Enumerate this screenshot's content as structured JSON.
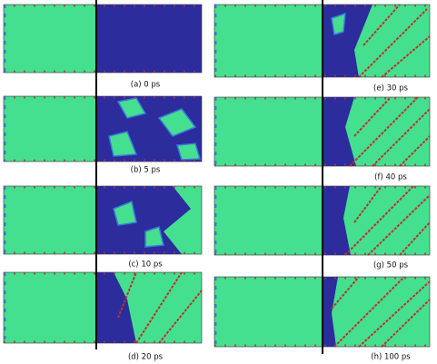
{
  "figure": {
    "panels": [
      {
        "caption": "(a) 0 ps"
      },
      {
        "caption": "(b) 5 ps"
      },
      {
        "caption": "(c) 10 ps"
      },
      {
        "caption": "(d) 20 ps"
      },
      {
        "caption": "(e) 30 ps"
      },
      {
        "caption": "(f) 40 ps"
      },
      {
        "caption": "(g) 50 ps"
      },
      {
        "caption": "(h) 100 ps"
      }
    ]
  }
}
